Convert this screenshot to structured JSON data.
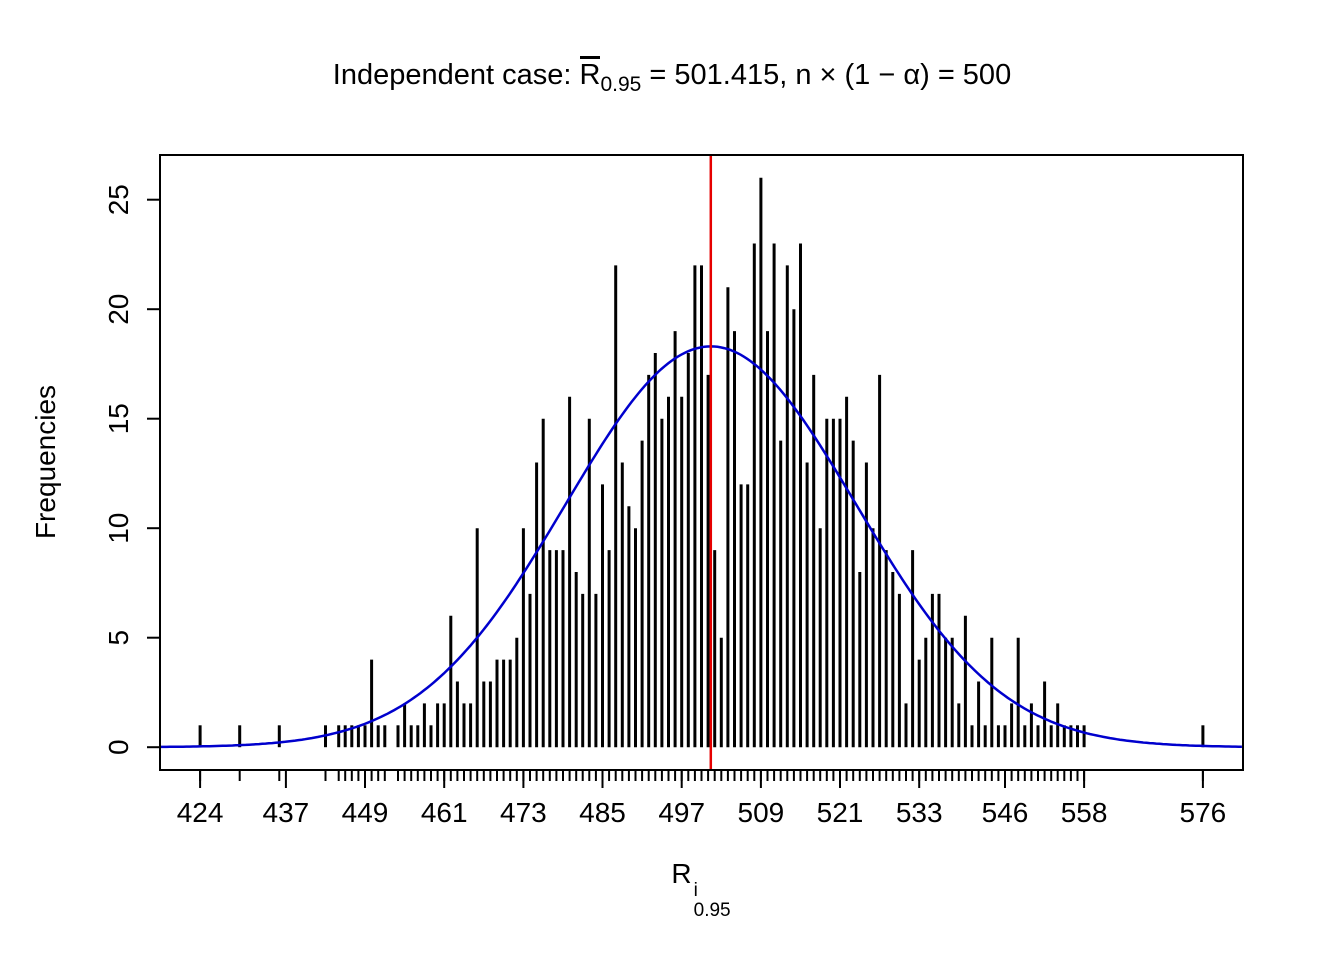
{
  "title": {
    "prefix": "Independent case: ",
    "r": "R",
    "r_sub": "0.95",
    "rest": " = 501.415,  n × (1 − α) = 500"
  },
  "ylabel": "Frequencies",
  "xlabel": {
    "base": "R",
    "sup": "i",
    "sub": "0.95"
  },
  "chart_data": {
    "type": "bar",
    "title_text": "Independent case: R̄0.95 = 501.415, n × (1 − α) = 500",
    "xlabel_text": "R^i_0.95",
    "ylabel_text": "Frequencies",
    "x": [
      424,
      430,
      436,
      443,
      445,
      446,
      447,
      448,
      449,
      450,
      451,
      452,
      454,
      455,
      456,
      457,
      458,
      459,
      460,
      461,
      462,
      463,
      464,
      465,
      466,
      467,
      468,
      469,
      470,
      471,
      472,
      473,
      474,
      475,
      476,
      477,
      478,
      479,
      480,
      481,
      482,
      483,
      484,
      485,
      486,
      487,
      488,
      489,
      490,
      491,
      492,
      493,
      494,
      495,
      496,
      497,
      498,
      499,
      500,
      501,
      502,
      503,
      504,
      505,
      506,
      507,
      508,
      509,
      510,
      511,
      512,
      513,
      514,
      515,
      516,
      517,
      518,
      519,
      520,
      521,
      522,
      523,
      524,
      525,
      526,
      527,
      528,
      529,
      530,
      531,
      532,
      533,
      534,
      535,
      536,
      537,
      538,
      539,
      540,
      541,
      542,
      543,
      544,
      545,
      546,
      547,
      548,
      549,
      550,
      551,
      552,
      553,
      554,
      555,
      556,
      557,
      558,
      576
    ],
    "frequencies": [
      1,
      1,
      1,
      1,
      1,
      1,
      1,
      1,
      1,
      4,
      1,
      1,
      1,
      2,
      1,
      1,
      2,
      1,
      2,
      2,
      6,
      3,
      2,
      2,
      10,
      3,
      3,
      4,
      4,
      4,
      5,
      10,
      7,
      13,
      15,
      9,
      9,
      9,
      16,
      8,
      7,
      15,
      7,
      12,
      9,
      22,
      13,
      11,
      10,
      14,
      17,
      18,
      15,
      16,
      19,
      16,
      18,
      22,
      22,
      17,
      9,
      5,
      21,
      19,
      12,
      12,
      23,
      26,
      19,
      23,
      14,
      22,
      20,
      23,
      13,
      17,
      10,
      15,
      15,
      15,
      16,
      14,
      8,
      13,
      10,
      17,
      9,
      8,
      7,
      2,
      9,
      4,
      5,
      7,
      7,
      5,
      5,
      2,
      6,
      1,
      3,
      1,
      5,
      1,
      1,
      2,
      5,
      1,
      2,
      1,
      3,
      1,
      2,
      1,
      1,
      1,
      1,
      1
    ],
    "x_tick_labels": [
      424,
      437,
      449,
      461,
      473,
      485,
      497,
      509,
      521,
      533,
      546,
      558,
      576
    ],
    "y_ticks": [
      0,
      5,
      10,
      15,
      20,
      25
    ],
    "xlim": [
      424,
      576
    ],
    "ylim": [
      0,
      26
    ],
    "grid": false,
    "legend": "none",
    "spike_color": "#000000",
    "mean_line": {
      "x": 501.415,
      "color": "#e60000"
    },
    "normal_curve": {
      "mean": 501.415,
      "sd": 22,
      "peak": 18.3,
      "color": "#0000cd"
    },
    "background_color": "#ffffff"
  }
}
